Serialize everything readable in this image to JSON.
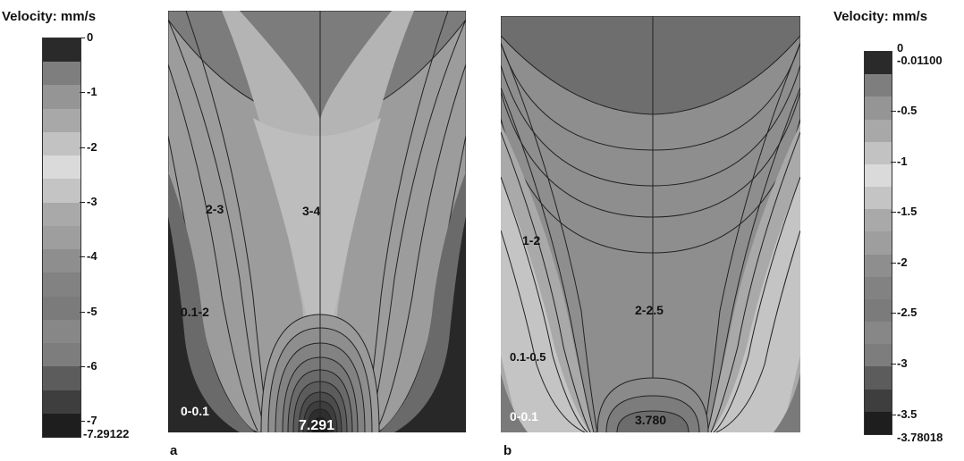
{
  "legend_left": {
    "title": "Velocity: mm/s",
    "ticks": [
      "0",
      "-1",
      "-2",
      "-3",
      "-4",
      "-5",
      "-6",
      "-7"
    ],
    "min_label": "-7.29122",
    "bands": [
      "#2a2a2a",
      "#7e7e7e",
      "#959595",
      "#a8a8a8",
      "#c2c2c2",
      "#dadada",
      "#c4c4c4",
      "#a9a9a9",
      "#9e9e9e",
      "#8e8e8e",
      "#828282",
      "#7b7b7b",
      "#878787",
      "#7d7d7d",
      "#5c5c5c",
      "#3e3e3e",
      "#1e1e1e"
    ]
  },
  "legend_right": {
    "title": "Velocity: mm/s",
    "top_label": "0",
    "second_label": "-0.01100",
    "ticks": [
      "-0.5",
      "-1",
      "-1.5",
      "-2",
      "-2.5",
      "-3",
      "-3.5"
    ],
    "min_label": "-3.78018",
    "bands": [
      "#2a2a2a",
      "#7e7e7e",
      "#959595",
      "#a8a8a8",
      "#c2c2c2",
      "#dadada",
      "#c4c4c4",
      "#a9a9a9",
      "#9e9e9e",
      "#8e8e8e",
      "#828282",
      "#7b7b7b",
      "#878787",
      "#7d7d7d",
      "#5c5c5c",
      "#3e3e3e",
      "#1e1e1e"
    ]
  },
  "panel_a": {
    "letter": "a",
    "labels": [
      "2-3",
      "3-4",
      "0.1-2",
      "0-0.1",
      "7.291"
    ]
  },
  "panel_b": {
    "letter": "b",
    "labels": [
      "1-2",
      "2-2.5",
      "0.1-0.5",
      "0-0.1",
      "3.780"
    ]
  }
}
